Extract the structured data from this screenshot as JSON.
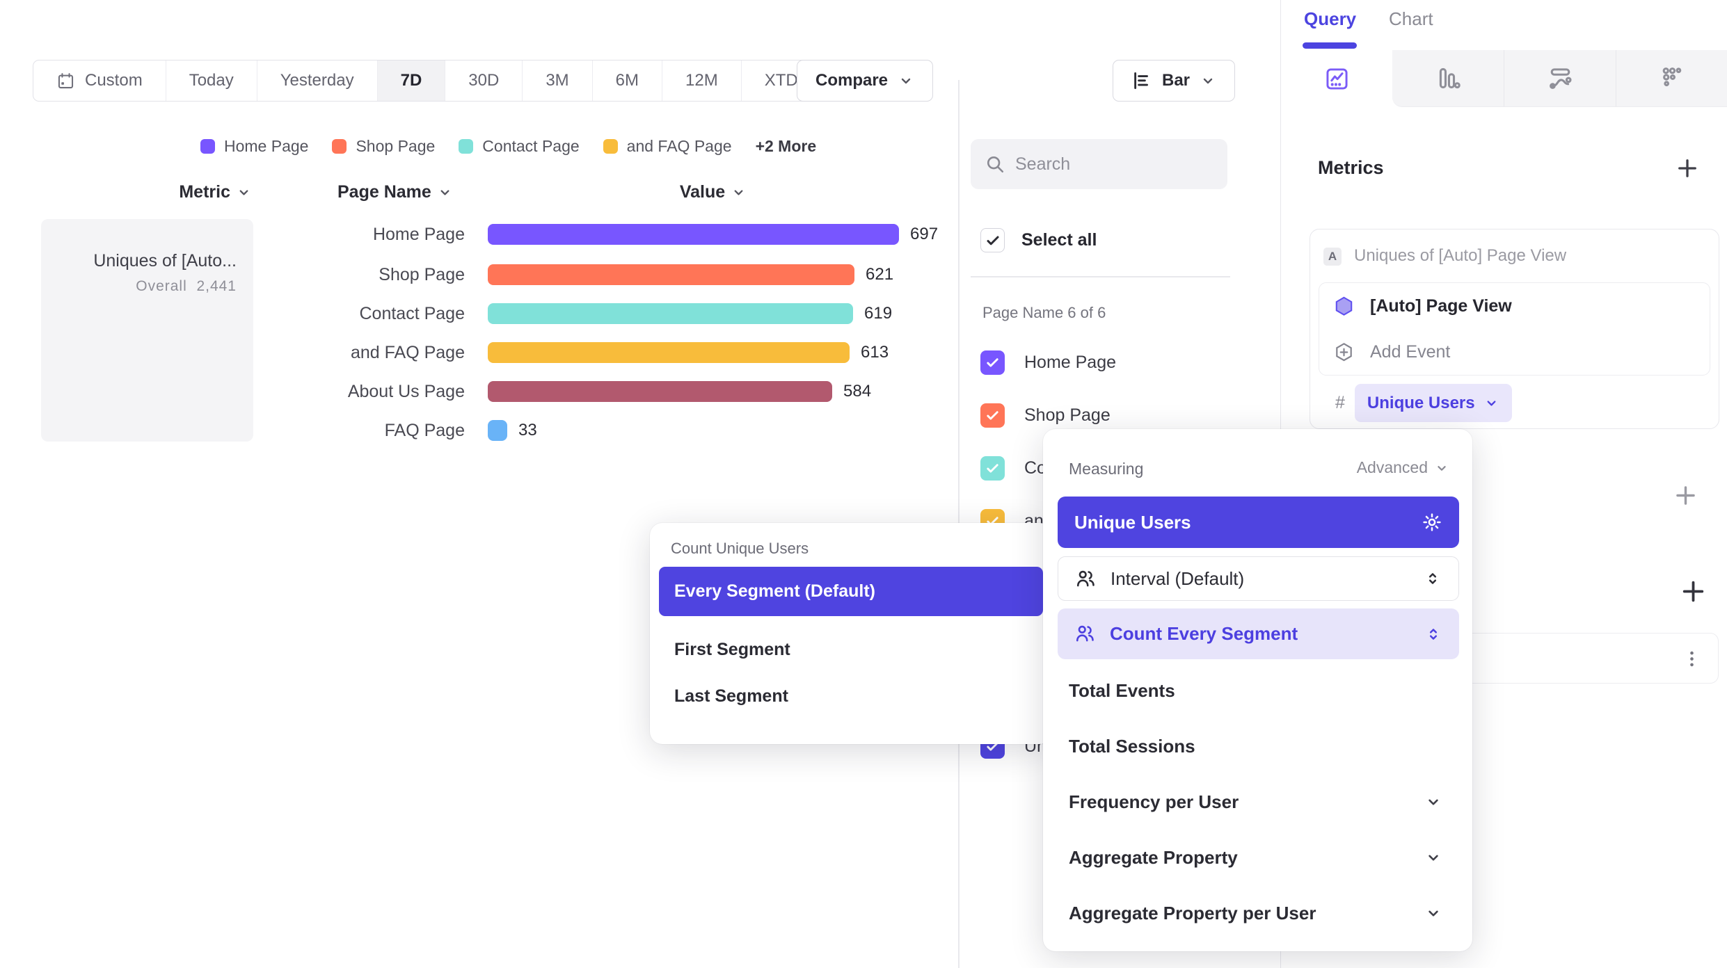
{
  "toolbar": {
    "ranges": [
      {
        "label": "Custom",
        "icon": "calendar"
      },
      {
        "label": "Today"
      },
      {
        "label": "Yesterday"
      },
      {
        "label": "7D",
        "active": true
      },
      {
        "label": "30D"
      },
      {
        "label": "3M"
      },
      {
        "label": "6M"
      },
      {
        "label": "12M"
      },
      {
        "label": "XTD",
        "chevron": true
      }
    ],
    "compare_label": "Compare",
    "chart_type_label": "Bar"
  },
  "legend": {
    "items": [
      {
        "label": "Home Page",
        "color": "#7856FF"
      },
      {
        "label": "Shop Page",
        "color": "#FF7557"
      },
      {
        "label": "Contact Page",
        "color": "#80E1D9"
      },
      {
        "label": "and FAQ Page",
        "color": "#F8BC3B"
      }
    ],
    "more_label": "+2 More"
  },
  "table": {
    "headers": {
      "metric": "Metric",
      "page_name": "Page Name",
      "value": "Value"
    }
  },
  "metric_card": {
    "title": "Uniques of [Auto...",
    "overall_label": "Overall",
    "overall_value": "2,441"
  },
  "chart_data": {
    "type": "bar",
    "title": "Uniques of [Auto] Page View",
    "orientation": "horizontal",
    "categories": [
      "Home Page",
      "Shop Page",
      "Contact Page",
      "and FAQ Page",
      "About Us Page",
      "FAQ Page"
    ],
    "values": [
      697,
      621,
      619,
      613,
      584,
      33
    ],
    "colors": [
      "#7856FF",
      "#FF7557",
      "#80E1D9",
      "#F8BC3B",
      "#B2596E",
      "#69B3F7"
    ],
    "overall_total": 2441,
    "xlim": [
      0,
      697
    ],
    "value_labels_shown": true
  },
  "filter_panel": {
    "search_placeholder": "Search",
    "select_all_label": "Select all",
    "group_label": "Page Name 6 of 6",
    "items": [
      {
        "label": "Home Page",
        "color": "#7856FF",
        "checked": true
      },
      {
        "label": "Shop Page",
        "color": "#FF7557",
        "checked": true
      },
      {
        "label": "Contact Page",
        "color": "#80E1D9",
        "checked": true
      },
      {
        "label": "and FAQ Page",
        "color": "#F8BC3B",
        "checked": true
      },
      {
        "label": "About Us Page",
        "color": "#B2596E",
        "checked": true
      },
      {
        "label": "FAQ Page",
        "color": "#69B3F7",
        "checked": true
      }
    ],
    "metric_item": {
      "label": "Uniques of [Auto] Page View",
      "color": "#4F44E0",
      "checked": true
    }
  },
  "right_panel": {
    "tabs": [
      {
        "label": "Query",
        "active": true
      },
      {
        "label": "Chart",
        "active": false
      }
    ],
    "chart_tabs": [
      {
        "name": "insights",
        "active": true
      },
      {
        "name": "funnels",
        "active": false
      },
      {
        "name": "flows",
        "active": false
      },
      {
        "name": "retention",
        "active": false
      }
    ],
    "metrics_header": "Metrics",
    "metric_row": {
      "badge": "A",
      "title": "Uniques of [Auto] Page View",
      "event_label": "[Auto] Page View",
      "add_event_label": "Add Event",
      "hash": "#",
      "measure_pill": "Unique Users"
    }
  },
  "measuring_popup": {
    "title": "Measuring",
    "advanced_label": "Advanced",
    "selected_label": "Unique Users",
    "rows": [
      {
        "label": "Interval (Default)",
        "icon": "people",
        "control": "stepper",
        "style": "outline"
      },
      {
        "label": "Count Every Segment",
        "icon": "people",
        "control": "stepper",
        "style": "tint"
      },
      {
        "label": "Total Events",
        "style": "plain"
      },
      {
        "label": "Total Sessions",
        "style": "plain"
      },
      {
        "label": "Frequency per User",
        "style": "plain",
        "control": "chevron"
      },
      {
        "label": "Aggregate Property",
        "style": "plain",
        "control": "chevron"
      },
      {
        "label": "Aggregate Property per User",
        "style": "plain",
        "control": "chevron"
      }
    ]
  },
  "count_popup": {
    "title": "Count Unique Users",
    "options": [
      {
        "label": "Every Segment (Default)",
        "selected": true
      },
      {
        "label": "First Segment"
      },
      {
        "label": "Last Segment"
      }
    ]
  },
  "colors": {
    "accent_indigo": "#4F44E0",
    "accent_tint": "#E9E6FB",
    "text_dark": "#2B2B33",
    "text_grey": "#74747E",
    "border": "#E7E7EC"
  }
}
